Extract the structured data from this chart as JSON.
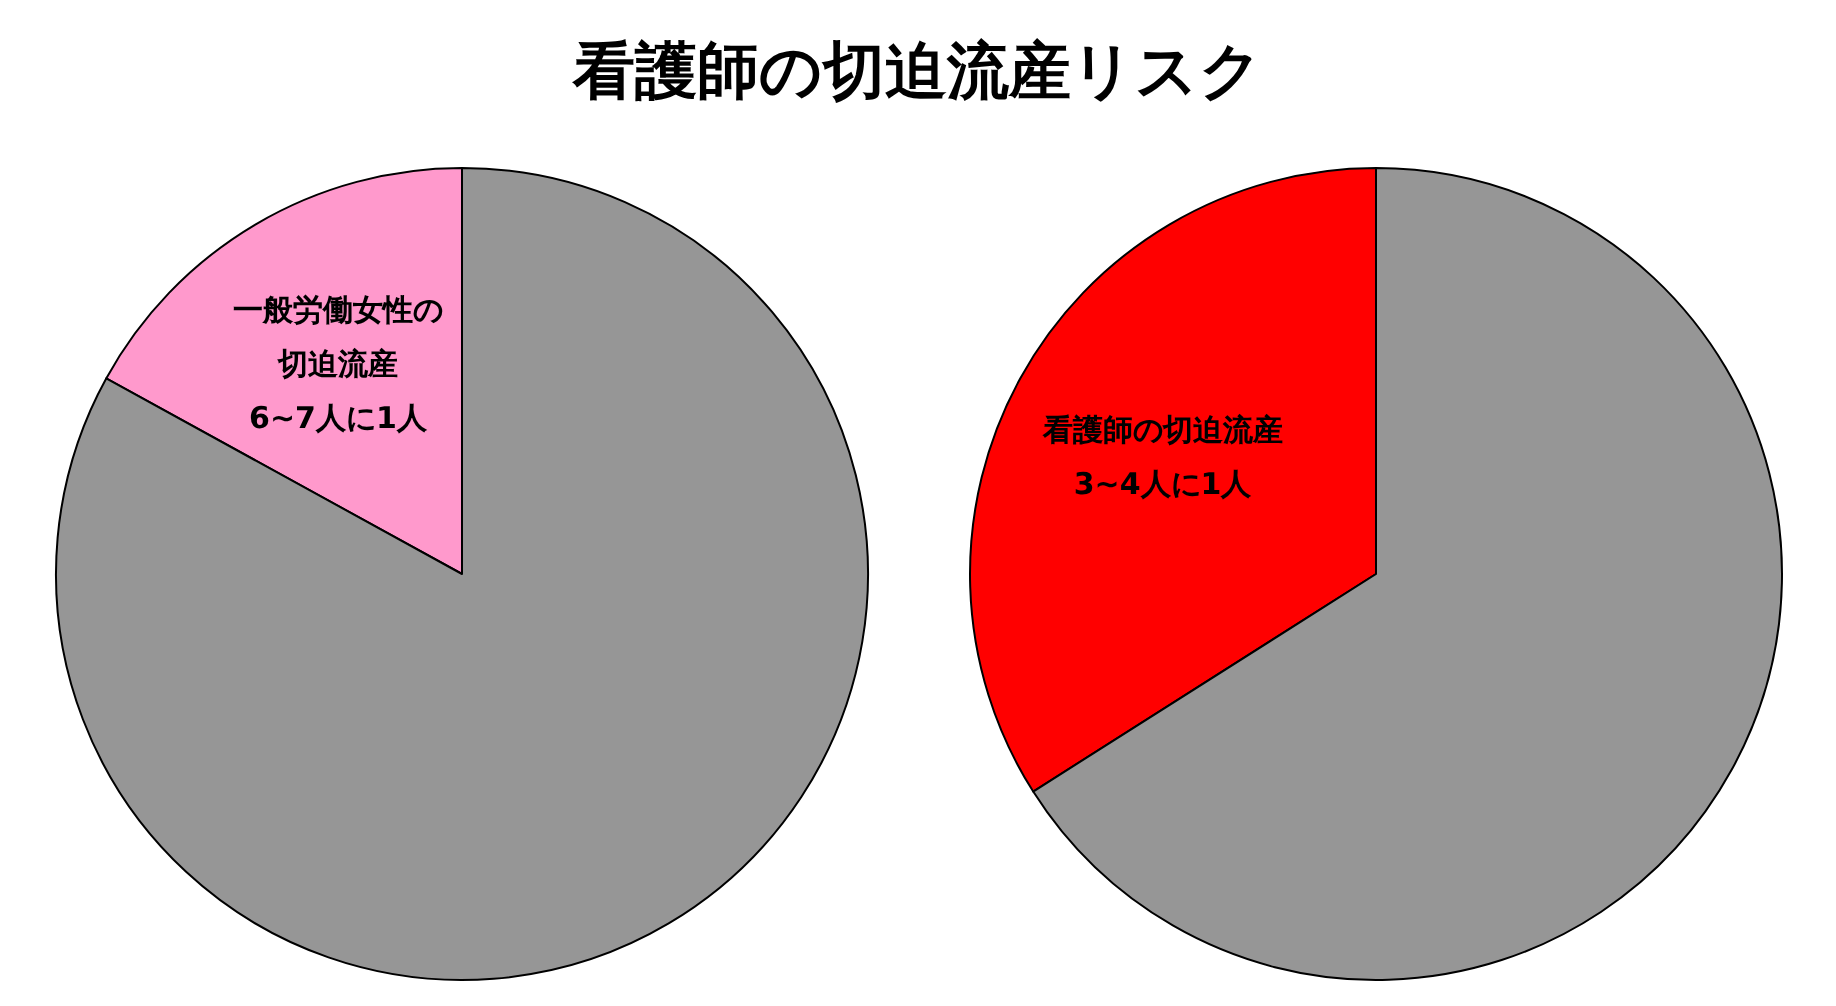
{
  "chart_data": [
    {
      "type": "pie",
      "title": "看護師の切迫流産リスク",
      "categories": [
        "一般労働女性の切迫流産6~7人に1人",
        null
      ],
      "values": [
        17,
        83
      ],
      "colors": [
        "#ff99cc",
        "#969696"
      ]
    },
    {
      "type": "pie",
      "categories": [
        "看護師の切迫流産3~4人に1人",
        null
      ],
      "values": [
        34,
        66
      ],
      "colors": [
        "#ff0000",
        "#969696"
      ]
    }
  ]
}
